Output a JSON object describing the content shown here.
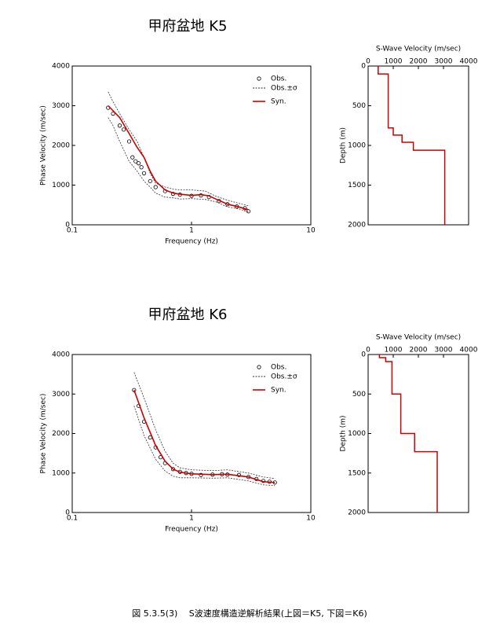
{
  "caption": "図 5.3.5(3)　 S波速度構造逆解析結果(上図＝K5, 下図＝K6)",
  "chart_data": [
    {
      "type": "dispersion",
      "title": "甲府盆地  K5",
      "xlabel": "Frequency (Hz)",
      "ylabel": "Phase Velocity (m/sec)",
      "xscale": "log",
      "xlim": [
        0.1,
        10
      ],
      "xticks": [
        0.1,
        1,
        10
      ],
      "ylim": [
        0,
        4000
      ],
      "yticks": [
        0,
        1000,
        2000,
        3000,
        4000
      ],
      "series": [
        {
          "name": "Obs.",
          "style": "marker",
          "color": "#000000",
          "x": [
            0.2,
            0.22,
            0.25,
            0.27,
            0.3,
            0.32,
            0.34,
            0.36,
            0.38,
            0.4,
            0.45,
            0.5,
            0.6,
            0.7,
            0.8,
            1.0,
            1.2,
            1.4,
            1.7,
            2.0,
            2.4,
            2.8,
            3.0
          ],
          "values": [
            2950,
            2800,
            2500,
            2400,
            2100,
            1700,
            1600,
            1550,
            1450,
            1300,
            1100,
            950,
            850,
            780,
            760,
            730,
            740,
            700,
            600,
            520,
            460,
            420,
            340
          ]
        },
        {
          "name": "Obs.±σ",
          "style": "dashed",
          "color": "#333333",
          "x": [
            0.2,
            0.22,
            0.25,
            0.3,
            0.35,
            0.4,
            0.45,
            0.5,
            0.6,
            0.7,
            0.8,
            1.0,
            1.3,
            1.6,
            2.0,
            2.5,
            3.0
          ],
          "upper": [
            3350,
            3100,
            2800,
            2400,
            2100,
            1700,
            1300,
            1050,
            950,
            900,
            880,
            880,
            850,
            720,
            620,
            540,
            480
          ],
          "lower": [
            2700,
            2500,
            2100,
            1600,
            1350,
            1100,
            950,
            800,
            700,
            680,
            650,
            660,
            640,
            580,
            450,
            400,
            320
          ]
        },
        {
          "name": "Syn.",
          "style": "solid",
          "color": "#cc0000",
          "x": [
            0.2,
            0.25,
            0.3,
            0.35,
            0.4,
            0.45,
            0.5,
            0.6,
            0.7,
            0.8,
            1.0,
            1.2,
            1.4,
            1.6,
            2.0,
            2.5,
            3.0
          ],
          "values": [
            3000,
            2700,
            2300,
            1950,
            1700,
            1350,
            1100,
            880,
            800,
            770,
            740,
            760,
            730,
            650,
            520,
            450,
            380
          ]
        }
      ]
    },
    {
      "type": "profile",
      "xlabel": "S-Wave Velocity (m/sec)",
      "ylabel": "Depth (m)",
      "color": "#cc0000",
      "xlim": [
        0,
        4000
      ],
      "xticks": [
        0,
        1000,
        2000,
        3000,
        4000
      ],
      "ylim": [
        0,
        2000
      ],
      "yticks": [
        0,
        500,
        1000,
        1500,
        2000
      ],
      "y_inverted": true,
      "x": [
        400,
        400,
        800,
        800,
        1000,
        1000,
        1350,
        1350,
        1800,
        1800,
        3050,
        3050
      ],
      "values": [
        0,
        100,
        100,
        780,
        780,
        870,
        870,
        960,
        960,
        1060,
        1060,
        2000
      ]
    },
    {
      "type": "dispersion",
      "title": "甲府盆地  K6",
      "xlabel": "Frequency (Hz)",
      "ylabel": "Phase Velocity (m/sec)",
      "xscale": "log",
      "xlim": [
        0.1,
        10
      ],
      "xticks": [
        0.1,
        1,
        10
      ],
      "ylim": [
        0,
        4000
      ],
      "yticks": [
        0,
        1000,
        2000,
        3000,
        4000
      ],
      "series": [
        {
          "name": "Obs.",
          "style": "marker",
          "color": "#000000",
          "x": [
            0.33,
            0.36,
            0.4,
            0.45,
            0.5,
            0.55,
            0.6,
            0.7,
            0.8,
            0.9,
            1.0,
            1.2,
            1.5,
            1.8,
            2.0,
            2.5,
            3.0,
            3.5,
            4.0,
            4.5,
            5.0
          ],
          "values": [
            3100,
            2700,
            2300,
            1900,
            1650,
            1400,
            1250,
            1100,
            1030,
            1000,
            980,
            950,
            960,
            970,
            960,
            950,
            900,
            850,
            800,
            780,
            760
          ]
        },
        {
          "name": "Obs.±σ",
          "style": "dashed",
          "color": "#333333",
          "x": [
            0.33,
            0.4,
            0.5,
            0.6,
            0.7,
            0.8,
            1.0,
            1.5,
            2.0,
            3.0,
            4.0,
            5.0
          ],
          "upper": [
            3550,
            2900,
            2100,
            1550,
            1250,
            1130,
            1080,
            1060,
            1080,
            1000,
            900,
            860
          ],
          "lower": [
            2700,
            1950,
            1350,
            1050,
            920,
            880,
            880,
            870,
            880,
            800,
            700,
            680
          ]
        },
        {
          "name": "Syn.",
          "style": "solid",
          "color": "#cc0000",
          "x": [
            0.33,
            0.4,
            0.5,
            0.6,
            0.7,
            0.8,
            1.0,
            1.5,
            2.0,
            3.0,
            4.0,
            5.0
          ],
          "values": [
            3100,
            2400,
            1700,
            1300,
            1100,
            1020,
            980,
            960,
            970,
            900,
            780,
            760
          ]
        }
      ]
    },
    {
      "type": "profile",
      "xlabel": "S-Wave Velocity (m/sec)",
      "ylabel": "Depth (m)",
      "color": "#cc0000",
      "xlim": [
        0,
        4000
      ],
      "xticks": [
        0,
        1000,
        2000,
        3000,
        4000
      ],
      "ylim": [
        0,
        2000
      ],
      "yticks": [
        0,
        500,
        1000,
        1500,
        2000
      ],
      "y_inverted": true,
      "x": [
        450,
        450,
        700,
        700,
        950,
        950,
        1300,
        1300,
        1850,
        1850,
        2750,
        2750
      ],
      "values": [
        0,
        40,
        40,
        90,
        90,
        500,
        500,
        1000,
        1000,
        1230,
        1230,
        2000
      ]
    }
  ]
}
